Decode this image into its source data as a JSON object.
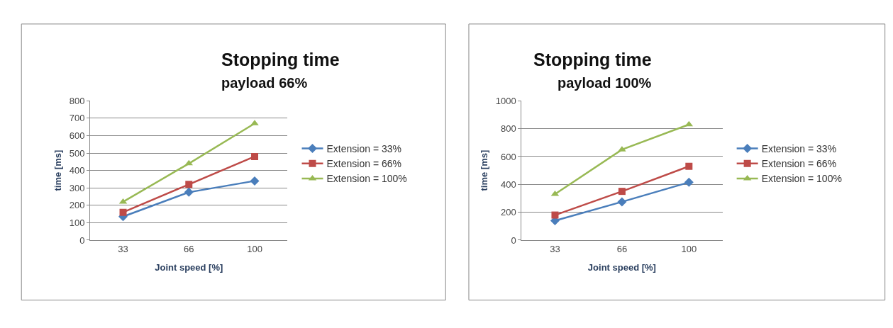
{
  "chart_data": [
    {
      "type": "line",
      "title": "Stopping time",
      "subtitle": "payload 66%",
      "xlabel": "Joint speed [%]",
      "ylabel": "time [ms]",
      "categories": [
        "33",
        "66",
        "100"
      ],
      "ylim": [
        0,
        800
      ],
      "yticks": [
        0,
        100,
        200,
        300,
        400,
        500,
        600,
        700,
        800
      ],
      "grid": "y",
      "legend": "right",
      "series": [
        {
          "name": "Extension = 33%",
          "color": "#4a7ebb",
          "marker": "diamond",
          "values": [
            135,
            275,
            340
          ]
        },
        {
          "name": "Extension = 66%",
          "color": "#be4b48",
          "marker": "square",
          "values": [
            160,
            320,
            480
          ]
        },
        {
          "name": "Extension = 100%",
          "color": "#98b954",
          "marker": "triangle",
          "values": [
            220,
            440,
            670
          ]
        }
      ]
    },
    {
      "type": "line",
      "title": "Stopping time",
      "subtitle": "payload 100%",
      "xlabel": "Joint speed [%]",
      "ylabel": "time [ms]",
      "categories": [
        "33",
        "66",
        "100"
      ],
      "ylim": [
        0,
        1000
      ],
      "yticks": [
        0,
        200,
        400,
        600,
        800,
        1000
      ],
      "grid": "y",
      "legend": "right",
      "series": [
        {
          "name": "Extension = 33%",
          "color": "#4a7ebb",
          "marker": "diamond",
          "values": [
            140,
            275,
            415
          ]
        },
        {
          "name": "Extension = 66%",
          "color": "#be4b48",
          "marker": "square",
          "values": [
            180,
            350,
            530
          ]
        },
        {
          "name": "Extension = 100%",
          "color": "#98b954",
          "marker": "triangle",
          "values": [
            330,
            650,
            830
          ]
        }
      ]
    }
  ]
}
